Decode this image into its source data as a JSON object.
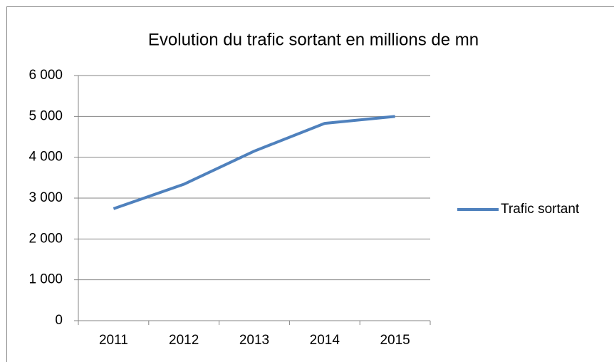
{
  "chart_data": {
    "type": "line",
    "title": "Evolution du trafic sortant en millions de mn",
    "categories": [
      "2011",
      "2012",
      "2013",
      "2014",
      "2015"
    ],
    "series": [
      {
        "name": "Trafic sortant",
        "color": "#4f81bd",
        "values": [
          2740,
          3340,
          4150,
          4830,
          5000
        ]
      }
    ],
    "ylim": [
      0,
      6000
    ],
    "yticks": [
      0,
      {
        "value": 1000,
        "label": "1 000"
      },
      {
        "value": 2000,
        "label": "2 000"
      },
      {
        "value": 3000,
        "label": "3 000"
      },
      {
        "value": 4000,
        "label": "4 000"
      },
      {
        "value": 5000,
        "label": "5 000"
      },
      {
        "value": 6000,
        "label": "6 000"
      }
    ],
    "grid": true,
    "legend": "right"
  }
}
